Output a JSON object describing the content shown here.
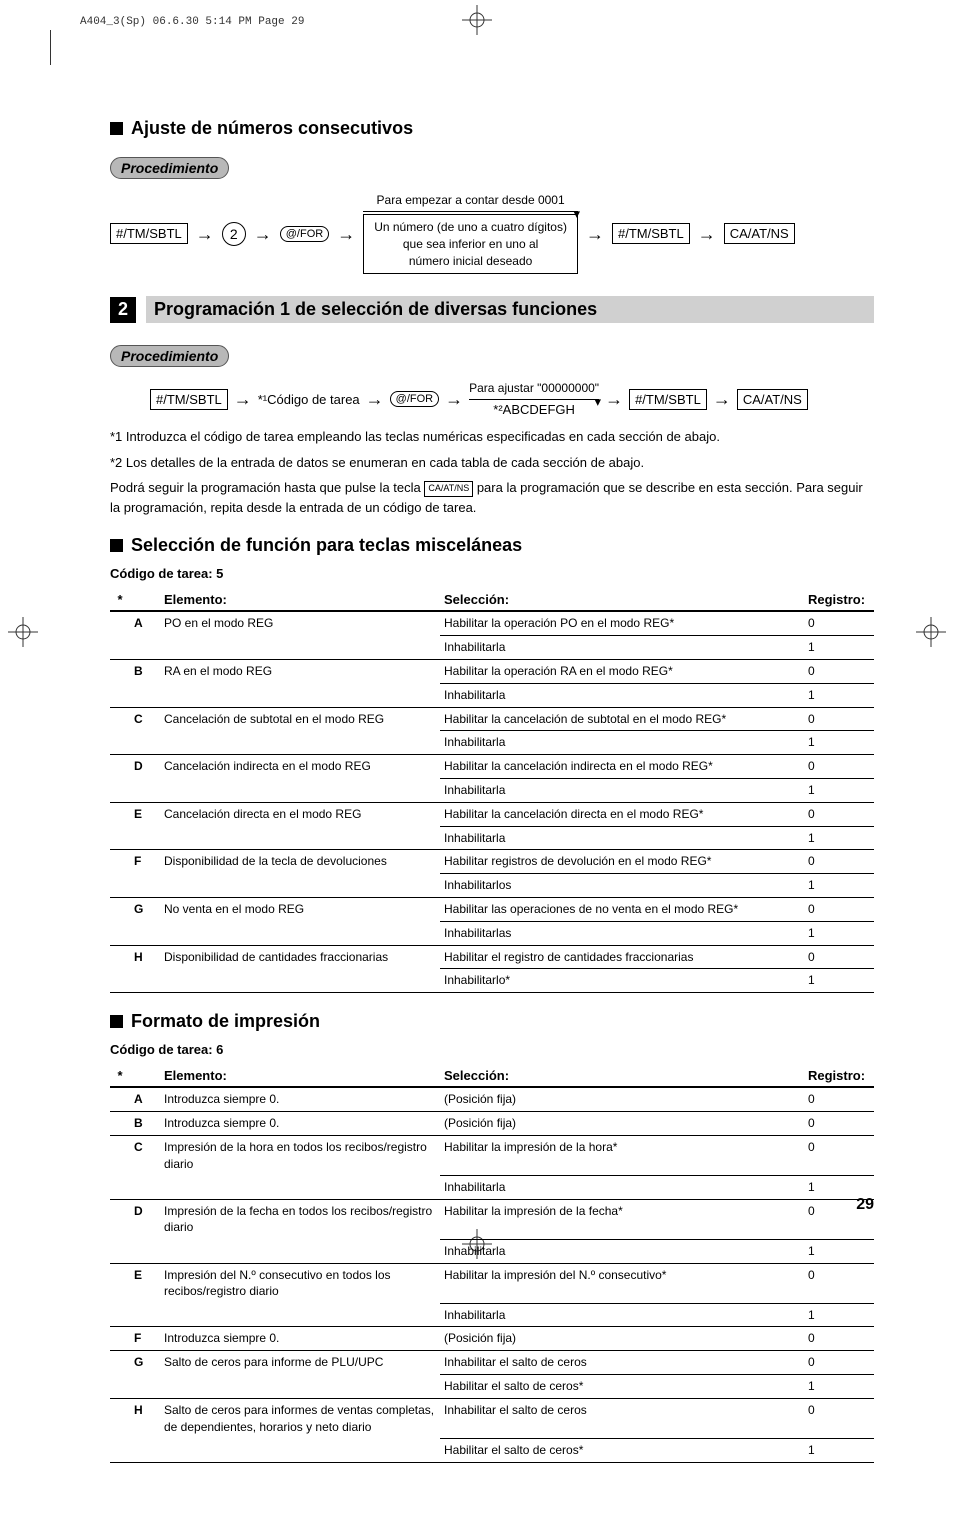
{
  "printerHeader": "A404_3(Sp)  06.6.30 5:14 PM  Page 29",
  "pageNum": "29",
  "section1": {
    "title": "Ajuste de números consecutivos",
    "proc": "Procedimiento",
    "topLabel": "Para empezar a contar desde 0001",
    "key1": "#/TM/SBTL",
    "key2": "2",
    "key3": "@/FOR",
    "box1": "Un número (de uno a cuatro dígitos)",
    "box2": "que sea inferior en uno al",
    "box3": "número inicial deseado",
    "key4": "#/TM/SBTL",
    "key5": "CA/AT/NS"
  },
  "section2": {
    "num": "2",
    "title": "Programación 1 de selección de diversas funciones",
    "proc": "Procedimiento",
    "topLabel": "Para ajustar \"00000000\"",
    "key1": "#/TM/SBTL",
    "label1": "*¹Código de tarea",
    "key2": "@/FOR",
    "label2": "*²ABCDEFGH",
    "key3": "#/TM/SBTL",
    "key4": "CA/AT/NS",
    "note1": "*1  Introduzca el código de tarea empleando las teclas numéricas especificadas en cada sección de abajo.",
    "note2": "*2  Los detalles de la entrada de datos se enumeran en cada tabla de cada sección de abajo.",
    "note3a": "Podrá seguir la programación hasta que pulse la tecla ",
    "note3key": "CA/AT/NS",
    "note3b": " para la programación que se describe en esta sección. Para seguir la programación, repita desde la entrada de un código de tarea."
  },
  "section3": {
    "title": "Selección de función para teclas misceláneas",
    "code": "Código de tarea: 5",
    "headers": {
      "el": "Elemento:",
      "sel": "Selección:",
      "reg": "Registro:"
    },
    "rows": [
      {
        "l": "A",
        "el": "PO en el modo REG",
        "s1": "Habilitar la operación PO en el modo REG*",
        "r1": "0",
        "s2": "Inhabilitarla",
        "r2": "1"
      },
      {
        "l": "B",
        "el": "RA en el modo REG",
        "s1": "Habilitar la operación RA en el modo REG*",
        "r1": "0",
        "s2": "Inhabilitarla",
        "r2": "1"
      },
      {
        "l": "C",
        "el": "Cancelación de subtotal en el modo REG",
        "s1": "Habilitar la cancelación de subtotal en el modo REG*",
        "r1": "0",
        "s2": "Inhabilitarla",
        "r2": "1"
      },
      {
        "l": "D",
        "el": "Cancelación indirecta en el modo REG",
        "s1": "Habilitar la cancelación indirecta en el modo REG*",
        "r1": "0",
        "s2": "Inhabilitarla",
        "r2": "1"
      },
      {
        "l": "E",
        "el": "Cancelación directa en el modo REG",
        "s1": "Habilitar la cancelación directa en el modo REG*",
        "r1": "0",
        "s2": "Inhabilitarla",
        "r2": "1"
      },
      {
        "l": "F",
        "el": "Disponibilidad de la tecla de devoluciones",
        "s1": "Habilitar registros de devolución en el modo REG*",
        "r1": "0",
        "s2": "Inhabilitarlos",
        "r2": "1"
      },
      {
        "l": "G",
        "el": "No venta en el modo REG",
        "s1": "Habilitar las operaciones de no venta en el modo REG*",
        "r1": "0",
        "s2": "Inhabilitarlas",
        "r2": "1"
      },
      {
        "l": "H",
        "el": "Disponibilidad de cantidades fraccionarias",
        "s1": "Habilitar el registro de cantidades fraccionarias",
        "r1": "0",
        "s2": "Inhabilitarlo*",
        "r2": "1"
      }
    ]
  },
  "section4": {
    "title": "Formato de impresión",
    "code": "Código de tarea: 6",
    "headers": {
      "el": "Elemento:",
      "sel": "Selección:",
      "reg": "Registro:"
    },
    "rows": [
      {
        "l": "A",
        "el": "Introduzca siempre 0.",
        "s1": "(Posición fija)",
        "r1": "0"
      },
      {
        "l": "B",
        "el": "Introduzca siempre 0.",
        "s1": "(Posición fija)",
        "r1": "0"
      },
      {
        "l": "C",
        "el": "Impresión de la hora en todos los recibos/registro diario",
        "s1": "Habilitar la impresión de la hora*",
        "r1": "0",
        "s2": "Inhabilitarla",
        "r2": "1"
      },
      {
        "l": "D",
        "el": "Impresión de la fecha en todos los recibos/registro diario",
        "s1": "Habilitar la impresión de la fecha*",
        "r1": "0",
        "s2": "Inhabilitarla",
        "r2": "1"
      },
      {
        "l": "E",
        "el": "Impresión del N.º consecutivo en todos los recibos/registro diario",
        "s1": "Habilitar la impresión del N.º consecutivo*",
        "r1": "0",
        "s2": "Inhabilitarla",
        "r2": "1"
      },
      {
        "l": "F",
        "el": "Introduzca siempre 0.",
        "s1": "(Posición fija)",
        "r1": "0"
      },
      {
        "l": "G",
        "el": "Salto de ceros para informe de PLU/UPC",
        "s1": "Inhabilitar el salto de ceros",
        "r1": "0",
        "s2": "Habilitar el salto de ceros*",
        "r2": "1"
      },
      {
        "l": "H",
        "el": "Salto de ceros para informes de ventas completas, de dependientes, horarios y neto diario",
        "s1": "Inhabilitar el salto de ceros",
        "r1": "0",
        "s2": "Habilitar el salto de ceros*",
        "r2": "1"
      }
    ]
  }
}
